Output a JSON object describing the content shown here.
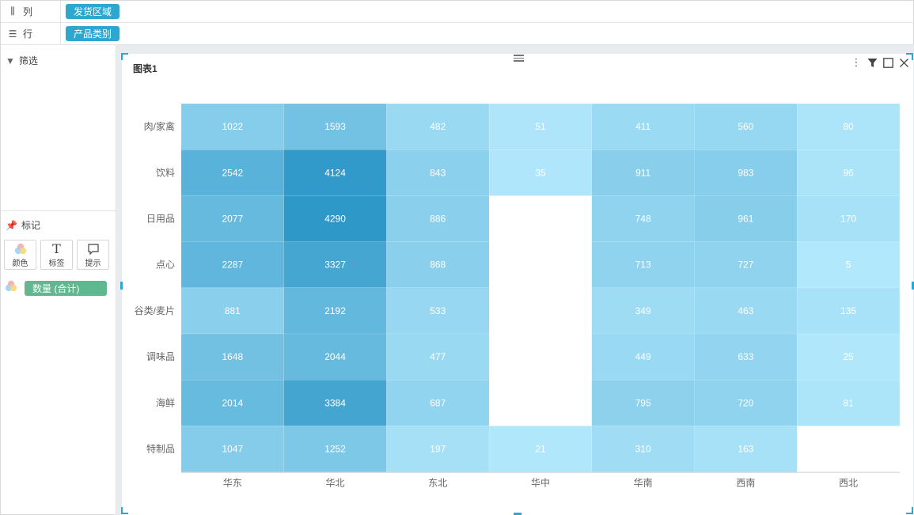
{
  "shelves": {
    "columns": {
      "label": "列",
      "icon": "column-bars-icon",
      "field": "发货区域"
    },
    "rows": {
      "label": "行",
      "icon": "list-icon",
      "field": "产品类别"
    }
  },
  "left_panel": {
    "filter_title": "筛选",
    "marks_title": "标记",
    "mark_buttons": [
      {
        "label": "颜色",
        "icon": "color-circles-icon"
      },
      {
        "label": "标签",
        "icon": "text-t-icon"
      },
      {
        "label": "提示",
        "icon": "tooltip-bubble-icon"
      }
    ],
    "color_measure": "数量 (合计)"
  },
  "card": {
    "title": "图表1",
    "tools": [
      "more-vertical-icon",
      "filter-icon",
      "maximize-icon",
      "close-icon"
    ]
  },
  "colors": {
    "accent": "#2ea7cf",
    "measure_pill": "#5fb88f"
  },
  "chart_data": {
    "type": "heatmap",
    "title": "",
    "xlabel": "",
    "ylabel": "",
    "x": [
      "华东",
      "华北",
      "东北",
      "华中",
      "华南",
      "西南",
      "西北"
    ],
    "y": [
      "肉/家禽",
      "饮料",
      "日用品",
      "点心",
      "谷类/麦片",
      "调味品",
      "海鲜",
      "特制品"
    ],
    "values": [
      [
        1022,
        1593,
        482,
        51,
        411,
        560,
        80
      ],
      [
        2542,
        4124,
        843,
        35,
        911,
        983,
        96
      ],
      [
        2077,
        4290,
        886,
        null,
        748,
        961,
        170
      ],
      [
        2287,
        3327,
        868,
        null,
        713,
        727,
        5
      ],
      [
        881,
        2192,
        533,
        null,
        349,
        463,
        135
      ],
      [
        1648,
        2044,
        477,
        null,
        449,
        633,
        25
      ],
      [
        2014,
        3384,
        687,
        null,
        795,
        720,
        81
      ],
      [
        1047,
        1252,
        197,
        21,
        310,
        163,
        null
      ]
    ],
    "color_scale": [
      "#b2e8fc",
      "#2e98c8"
    ],
    "legend": "none"
  }
}
